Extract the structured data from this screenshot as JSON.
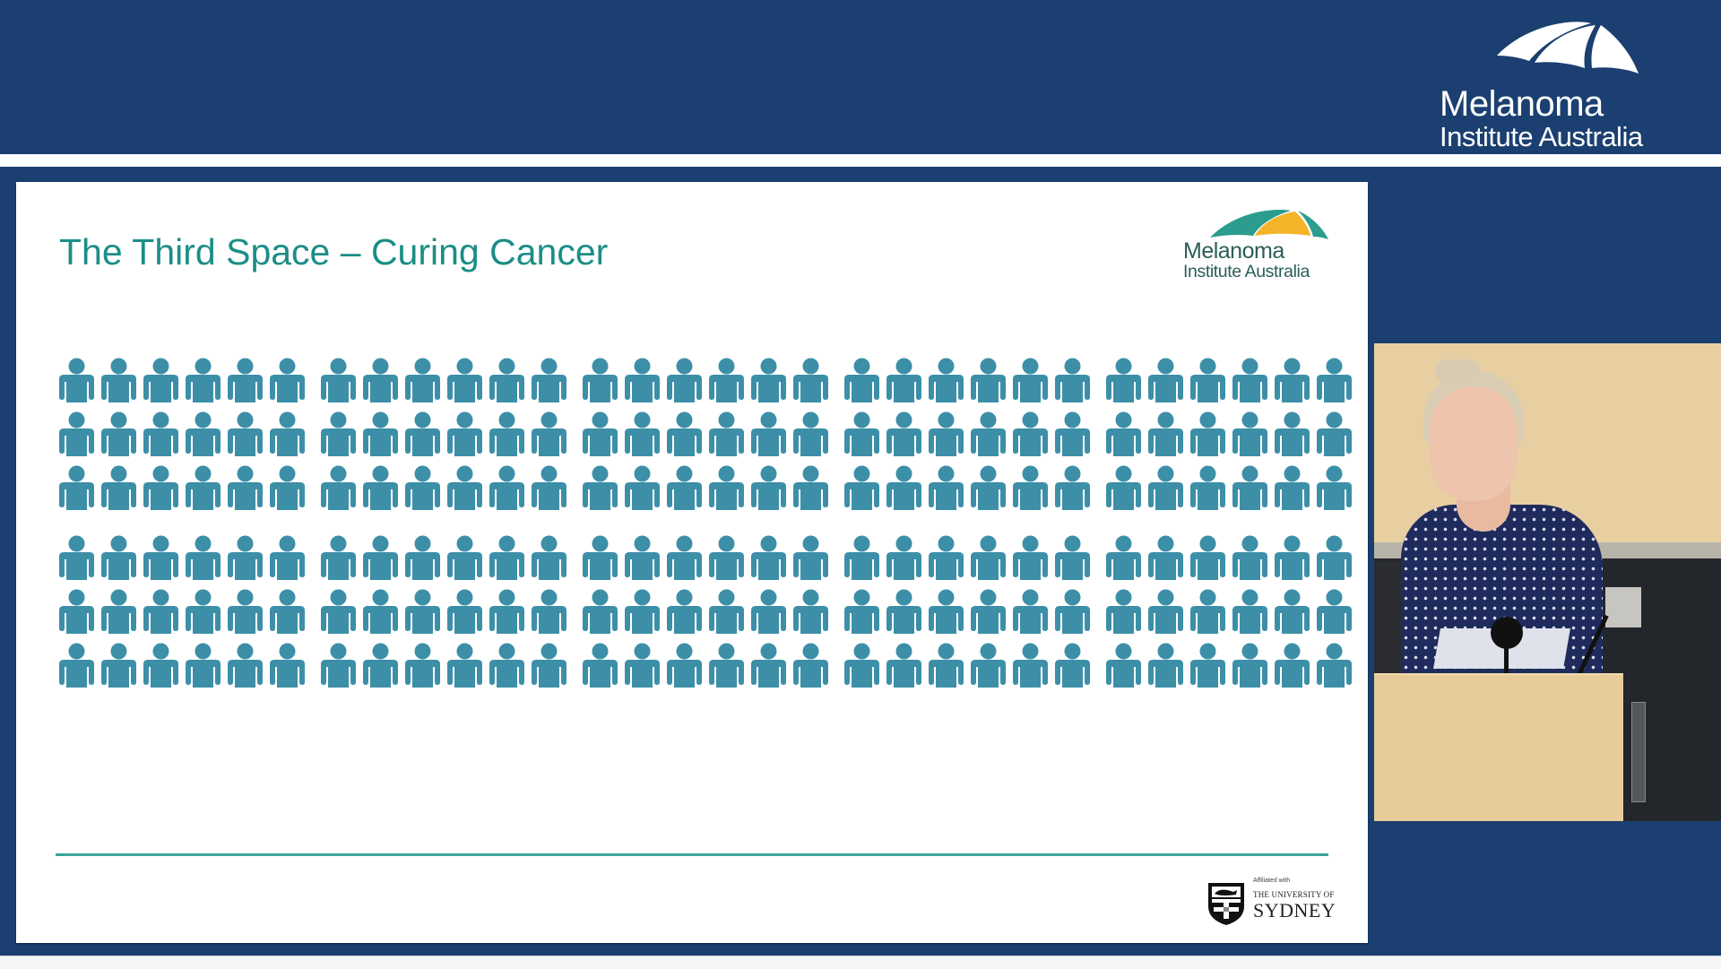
{
  "header": {
    "brand_line1": "Melanoma",
    "brand_line2": "Institute Australia",
    "background_color": "#1b3f70"
  },
  "slide": {
    "title": "The Third Space – Curing Cancer",
    "title_color": "#1b8e86",
    "logo_line1": "Melanoma",
    "logo_line2": "Institute Australia",
    "people_graphic": {
      "icon": "person-icon",
      "icon_color": "#3d8fa8",
      "blocks": 2,
      "rows_per_block": 3,
      "groups_per_row": 5,
      "icons_per_group": 6,
      "total_icons": 180
    },
    "footer": {
      "affiliated_label": "Affiliated with",
      "university_small": "THE UNIVERSITY OF",
      "university_big": "SYDNEY"
    }
  },
  "video": {
    "description": "Presenter speaking at a wooden podium with microphone"
  }
}
